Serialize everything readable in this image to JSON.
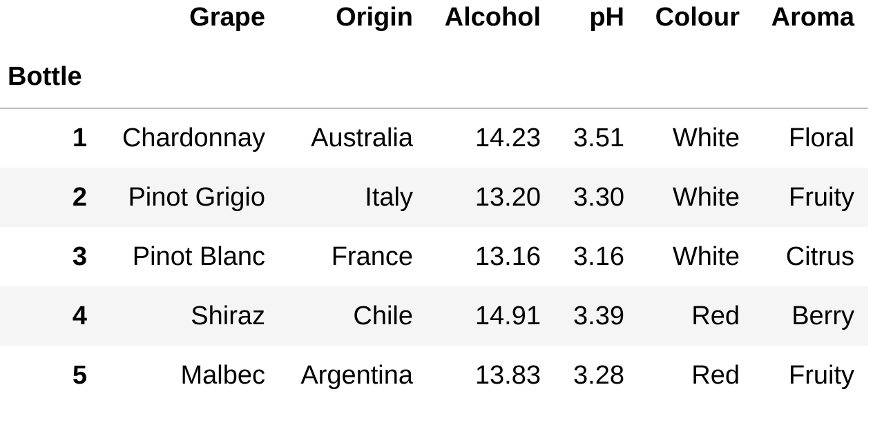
{
  "table": {
    "columns": [
      "Grape",
      "Origin",
      "Alcohol",
      "pH",
      "Colour",
      "Aroma"
    ],
    "index_name": "Bottle",
    "rows": [
      {
        "index": "1",
        "cells": [
          "Chardonnay",
          "Australia",
          "14.23",
          "3.51",
          "White",
          "Floral"
        ]
      },
      {
        "index": "2",
        "cells": [
          "Pinot Grigio",
          "Italy",
          "13.20",
          "3.30",
          "White",
          "Fruity"
        ]
      },
      {
        "index": "3",
        "cells": [
          "Pinot Blanc",
          "France",
          "13.16",
          "3.16",
          "White",
          "Citrus"
        ]
      },
      {
        "index": "4",
        "cells": [
          "Shiraz",
          "Chile",
          "14.91",
          "3.39",
          "Red",
          "Berry"
        ]
      },
      {
        "index": "5",
        "cells": [
          "Malbec",
          "Argentina",
          "13.83",
          "3.28",
          "Red",
          "Fruity"
        ]
      }
    ]
  },
  "colors": {
    "stripe": "#f5f5f5",
    "header_rule": "#bdbdbd",
    "text": "#000000"
  }
}
